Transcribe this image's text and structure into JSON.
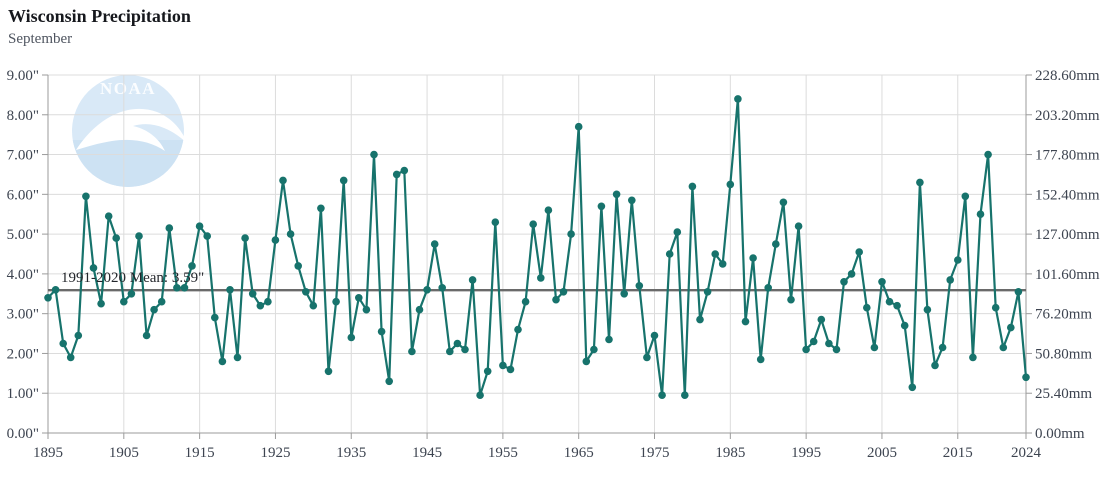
{
  "header": {
    "title": "Wisconsin Precipitation",
    "subtitle": "September"
  },
  "watermark": {
    "label": "NOAA",
    "circle_color": "#d9e9f7",
    "lower_color": "#cde2f3",
    "text_color": "#fbfdff",
    "bird_color": "#ffffff"
  },
  "chart_data": {
    "type": "line",
    "title": "Wisconsin Precipitation",
    "subtitle": "September",
    "series_name": "September precipitation (inches)",
    "x_range": [
      1895,
      2024
    ],
    "ylim": [
      0,
      9
    ],
    "ylim_right_mm": [
      0,
      228.6
    ],
    "grid": true,
    "line_color": "#17736c",
    "axis_color": "#9b9b9b",
    "grid_color": "#dcdcdc",
    "tick_text_color": "#3d4450",
    "years": [
      1895,
      1896,
      1897,
      1898,
      1899,
      1900,
      1901,
      1902,
      1903,
      1904,
      1905,
      1906,
      1907,
      1908,
      1909,
      1910,
      1911,
      1912,
      1913,
      1914,
      1915,
      1916,
      1917,
      1918,
      1919,
      1920,
      1921,
      1922,
      1923,
      1924,
      1925,
      1926,
      1927,
      1928,
      1929,
      1930,
      1931,
      1932,
      1933,
      1934,
      1935,
      1936,
      1937,
      1938,
      1939,
      1940,
      1941,
      1942,
      1943,
      1944,
      1945,
      1946,
      1947,
      1948,
      1949,
      1950,
      1951,
      1952,
      1953,
      1954,
      1955,
      1956,
      1957,
      1958,
      1959,
      1960,
      1961,
      1962,
      1963,
      1964,
      1965,
      1966,
      1967,
      1968,
      1969,
      1970,
      1971,
      1972,
      1973,
      1974,
      1975,
      1976,
      1977,
      1978,
      1979,
      1980,
      1981,
      1982,
      1983,
      1984,
      1985,
      1986,
      1987,
      1988,
      1989,
      1990,
      1991,
      1992,
      1993,
      1994,
      1995,
      1996,
      1997,
      1998,
      1999,
      2000,
      2001,
      2002,
      2003,
      2004,
      2005,
      2006,
      2007,
      2008,
      2009,
      2010,
      2011,
      2012,
      2013,
      2014,
      2015,
      2016,
      2017,
      2018,
      2019,
      2020,
      2021,
      2022,
      2023,
      2024
    ],
    "values": [
      3.4,
      3.6,
      2.25,
      1.9,
      2.45,
      5.95,
      4.15,
      3.25,
      5.45,
      4.9,
      3.3,
      3.5,
      4.95,
      2.45,
      3.1,
      3.3,
      5.15,
      3.65,
      3.65,
      4.2,
      5.2,
      4.95,
      2.9,
      1.8,
      3.6,
      1.9,
      4.9,
      3.5,
      3.2,
      3.3,
      4.85,
      6.35,
      5.0,
      4.2,
      3.55,
      3.2,
      5.65,
      1.55,
      3.3,
      6.35,
      2.4,
      3.4,
      3.1,
      7.0,
      2.55,
      1.3,
      6.5,
      6.6,
      2.05,
      3.1,
      3.6,
      4.75,
      3.65,
      2.05,
      2.25,
      2.1,
      3.85,
      0.95,
      1.55,
      5.3,
      1.7,
      1.6,
      2.6,
      3.3,
      5.25,
      3.9,
      5.6,
      3.35,
      3.55,
      5.0,
      7.7,
      1.8,
      2.1,
      5.7,
      2.35,
      6.0,
      3.5,
      5.85,
      3.7,
      1.9,
      2.45,
      0.95,
      4.5,
      5.05,
      0.95,
      6.2,
      2.85,
      3.55,
      4.5,
      4.25,
      6.25,
      8.4,
      2.8,
      4.4,
      1.85,
      3.65,
      4.75,
      5.8,
      3.35,
      5.2,
      2.1,
      2.3,
      2.85,
      2.25,
      2.1,
      3.8,
      4.0,
      4.55,
      3.15,
      2.15,
      3.8,
      3.3,
      3.2,
      2.7,
      1.15,
      6.3,
      3.1,
      1.7,
      2.15,
      3.85,
      4.35,
      5.95,
      1.9,
      5.5,
      7.0,
      3.15,
      2.15,
      2.65,
      3.55,
      1.4
    ],
    "mean_line": {
      "label": "1991-2020 Mean: 3.59\"",
      "value": 3.59,
      "color": "#6a6a6a"
    },
    "y_axis_left": {
      "unit": "inches",
      "ticks": [
        "9.00\"",
        "8.00\"",
        "7.00\"",
        "6.00\"",
        "5.00\"",
        "4.00\"",
        "3.00\"",
        "2.00\"",
        "1.00\"",
        "0.00\""
      ]
    },
    "y_axis_right": {
      "unit": "mm",
      "ticks": [
        "228.60mm",
        "203.20mm",
        "177.80mm",
        "152.40mm",
        "127.00mm",
        "101.60mm",
        "76.20mm",
        "50.80mm",
        "25.40mm",
        "0.00mm"
      ]
    },
    "x_axis": {
      "tick_labels": [
        "1895",
        "1905",
        "1915",
        "1925",
        "1935",
        "1945",
        "1955",
        "1965",
        "1975",
        "1985",
        "1995",
        "2005",
        "2015",
        "2024"
      ]
    }
  }
}
